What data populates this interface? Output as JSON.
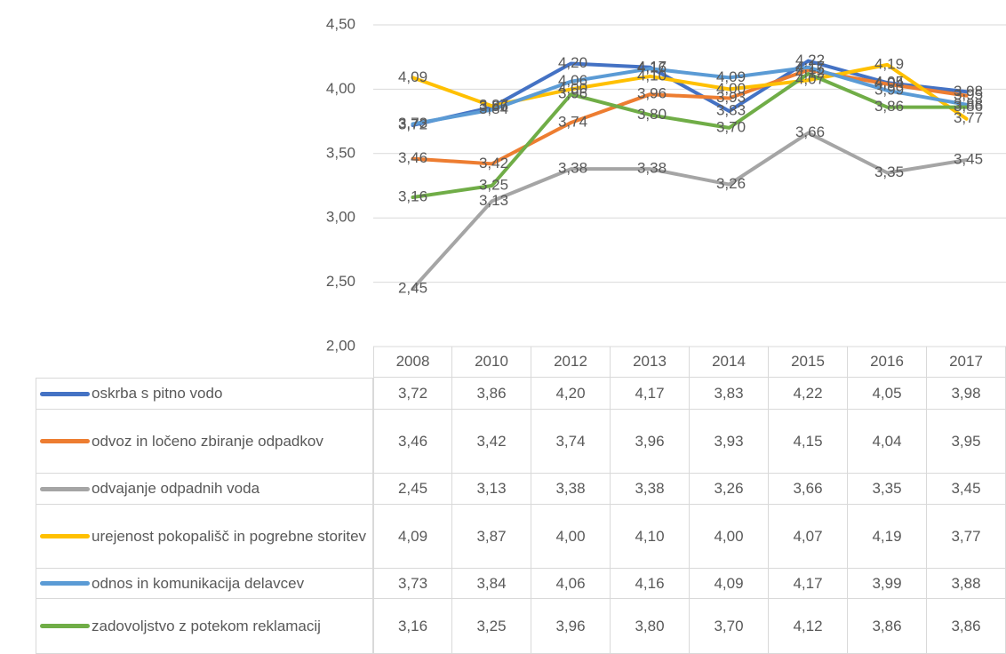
{
  "chart_data": {
    "type": "line",
    "categories": [
      "2008",
      "2010",
      "2012",
      "2013",
      "2014",
      "2015",
      "2016",
      "2017"
    ],
    "series": [
      {
        "name": "oskrba s pitno vodo",
        "color": "#4472c4",
        "values": [
          3.72,
          3.86,
          4.2,
          4.17,
          3.83,
          4.22,
          4.05,
          3.98
        ],
        "value_labels": [
          "3,72",
          "3,86",
          "4,20",
          "4,17",
          "3,83",
          "4,22",
          "4,05",
          "3,98"
        ]
      },
      {
        "name": "odvoz in ločeno zbiranje odpadkov",
        "color": "#ed7d31",
        "values": [
          3.46,
          3.42,
          3.74,
          3.96,
          3.93,
          4.15,
          4.04,
          3.95
        ],
        "value_labels": [
          "3,46",
          "3,42",
          "3,74",
          "3,96",
          "3,93",
          "4,15",
          "4,04",
          "3,95"
        ]
      },
      {
        "name": "odvajanje odpadnih voda",
        "color": "#a5a5a5",
        "values": [
          2.45,
          3.13,
          3.38,
          3.38,
          3.26,
          3.66,
          3.35,
          3.45
        ],
        "value_labels": [
          "2,45",
          "3,13",
          "3,38",
          "3,38",
          "3,26",
          "3,66",
          "3,35",
          "3,45"
        ]
      },
      {
        "name": "urejenost pokopališč in pogrebne storitev",
        "color": "#ffc000",
        "values": [
          4.09,
          3.87,
          4.0,
          4.1,
          4.0,
          4.07,
          4.19,
          3.77
        ],
        "value_labels": [
          "4,09",
          "3,87",
          "4,00",
          "4,10",
          "4,00",
          "4,07",
          "4,19",
          "3,77"
        ]
      },
      {
        "name": "odnos in komunikacija delavcev",
        "color": "#5b9bd5",
        "values": [
          3.73,
          3.84,
          4.06,
          4.16,
          4.09,
          4.17,
          3.99,
          3.88
        ],
        "value_labels": [
          "3,73",
          "3,84",
          "4,06",
          "4,16",
          "4,09",
          "4,17",
          "3,99",
          "3,88"
        ]
      },
      {
        "name": "zadovoljstvo z potekom reklamacij",
        "color": "#70ad47",
        "values": [
          3.16,
          3.25,
          3.96,
          3.8,
          3.7,
          4.12,
          3.86,
          3.86
        ],
        "value_labels": [
          "3,16",
          "3,25",
          "3,96",
          "3,80",
          "3,70",
          "4,12",
          "3,86",
          "3,86"
        ]
      }
    ],
    "ylim": [
      2.0,
      4.5
    ],
    "yticks": [
      {
        "value": 2.0,
        "label": "2,00"
      },
      {
        "value": 2.5,
        "label": "2,50"
      },
      {
        "value": 3.0,
        "label": "3,00"
      },
      {
        "value": 3.5,
        "label": "3,50"
      },
      {
        "value": 4.0,
        "label": "4,00"
      },
      {
        "value": 4.5,
        "label": "4,50"
      }
    ],
    "grid": true
  }
}
